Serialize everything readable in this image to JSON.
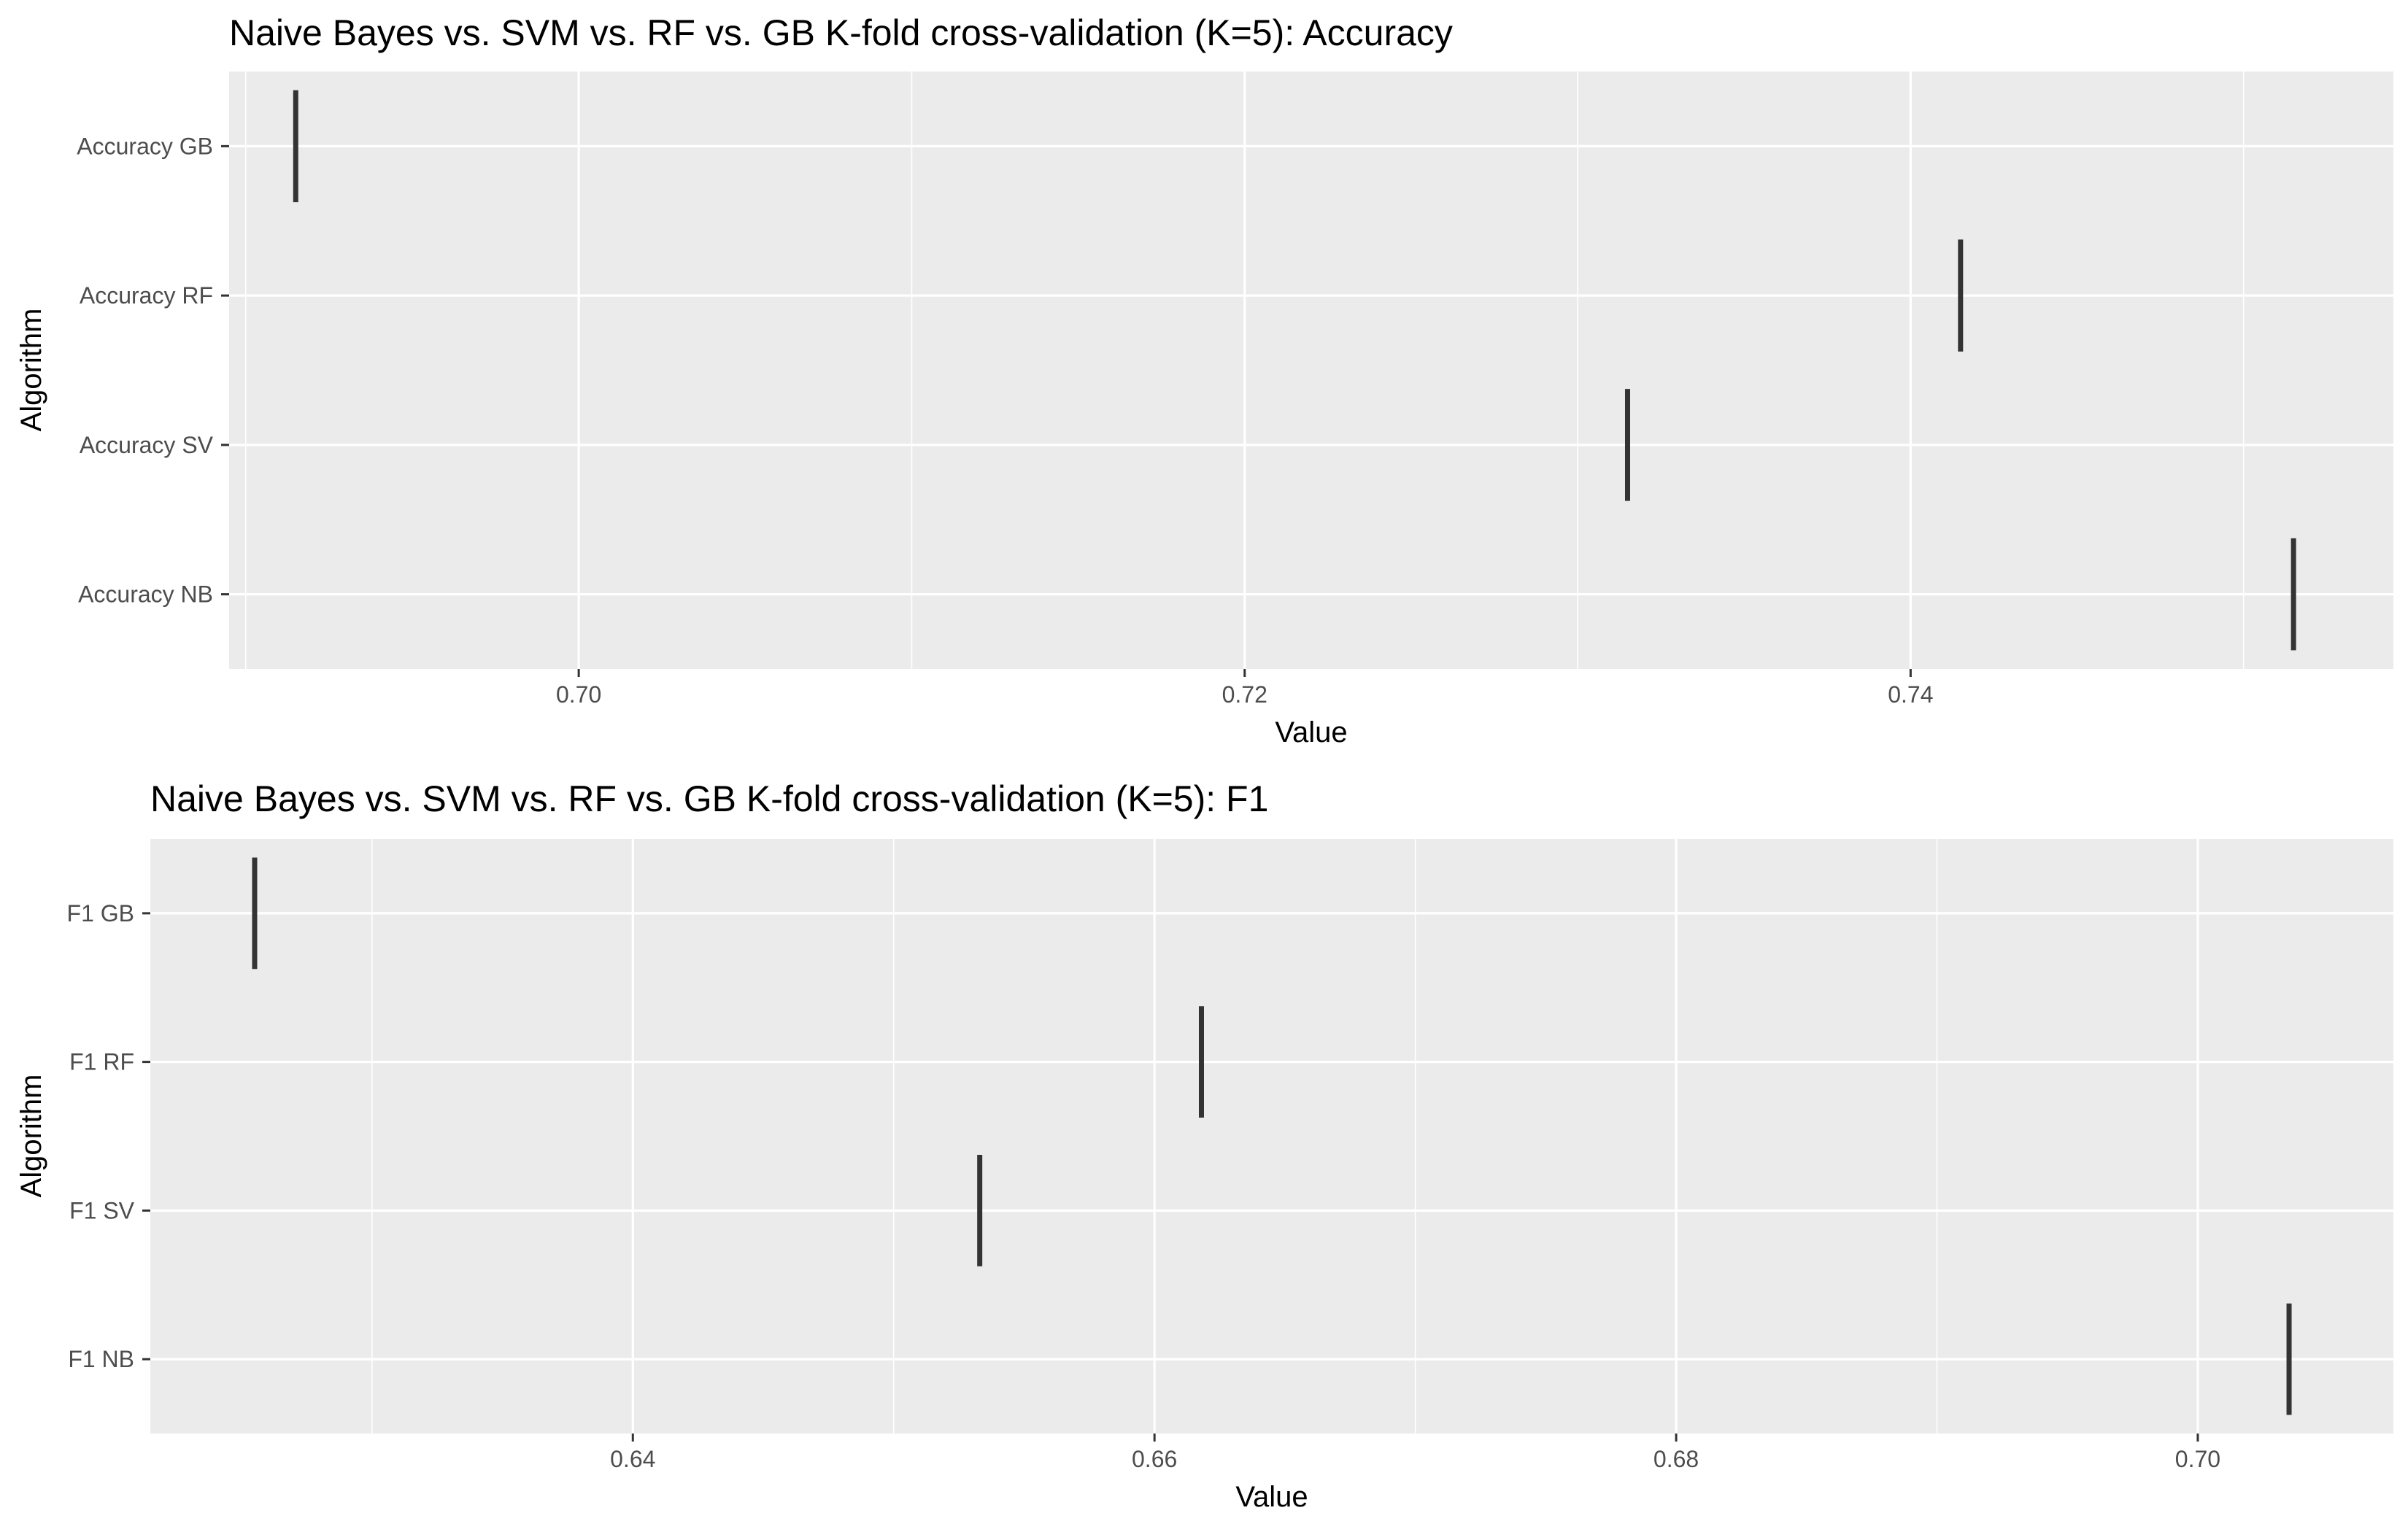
{
  "chart_data": [
    {
      "type": "boxplot",
      "title": "Naive Bayes vs. SVM vs. RF vs. GB K-fold cross-validation (K=5): Accuracy",
      "xlabel": "Value",
      "ylabel": "Algorithm",
      "xlim": [
        0.6895,
        0.7545
      ],
      "x_ticks": [
        0.7,
        0.72,
        0.74
      ],
      "x_tick_labels": [
        "0.70",
        "0.72",
        "0.74"
      ],
      "grid": true,
      "categories": [
        "Accuracy GB",
        "Accuracy RF",
        "Accuracy SV",
        "Accuracy NB"
      ],
      "values": [
        0.6915,
        0.7415,
        0.7315,
        0.7515
      ],
      "colors": {
        "panel": "#ebebeb",
        "grid": "#ffffff",
        "mark": "#333333",
        "tick": "#333333"
      }
    },
    {
      "type": "boxplot",
      "title": "Naive Bayes vs. SVM vs. RF vs. GB K-fold cross-validation (K=5): F1",
      "xlabel": "Value",
      "ylabel": "Algorithm",
      "xlim": [
        0.6215,
        0.7075
      ],
      "x_ticks": [
        0.64,
        0.66,
        0.68,
        0.7
      ],
      "x_tick_labels": [
        "0.64",
        "0.66",
        "0.68",
        "0.70"
      ],
      "grid": true,
      "categories": [
        "F1 GB",
        "F1 RF",
        "F1 SV",
        "F1 NB"
      ],
      "values": [
        0.6255,
        0.6618,
        0.6533,
        0.7035
      ],
      "colors": {
        "panel": "#ebebeb",
        "grid": "#ffffff",
        "mark": "#333333",
        "tick": "#333333"
      }
    }
  ]
}
